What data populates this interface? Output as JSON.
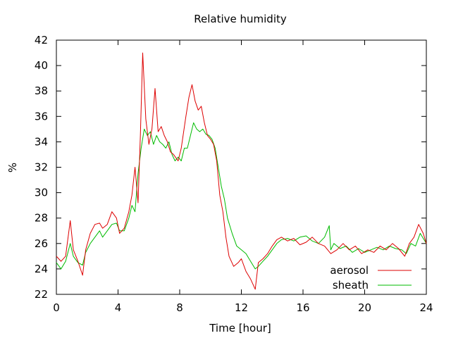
{
  "chart_data": {
    "type": "line",
    "title": "Relative humidity",
    "xlabel": "Time [hour]",
    "ylabel": "%",
    "xlim": [
      0,
      24
    ],
    "ylim": [
      22,
      42
    ],
    "xticks": [
      0,
      4,
      8,
      12,
      16,
      20,
      24
    ],
    "yticks": [
      22,
      24,
      26,
      28,
      30,
      32,
      34,
      36,
      38,
      40,
      42
    ],
    "grid": false,
    "legend": "bottom-right",
    "series": [
      {
        "name": "aerosol",
        "color": "#dd0000",
        "x": [
          0,
          0.3,
          0.6,
          0.9,
          1.1,
          1.4,
          1.7,
          1.9,
          2.2,
          2.5,
          2.8,
          3.0,
          3.3,
          3.6,
          3.9,
          4.1,
          4.4,
          4.7,
          4.9,
          5.1,
          5.3,
          5.45,
          5.6,
          5.8,
          6.0,
          6.2,
          6.4,
          6.6,
          6.8,
          7.0,
          7.2,
          7.4,
          7.6,
          7.9,
          8.1,
          8.4,
          8.6,
          8.8,
          9.0,
          9.2,
          9.4,
          9.6,
          9.8,
          10.0,
          10.2,
          10.4,
          10.6,
          10.8,
          11.0,
          11.2,
          11.5,
          11.8,
          12.0,
          12.3,
          12.6,
          12.9,
          13.1,
          13.4,
          13.7,
          14.0,
          14.3,
          14.6,
          15.0,
          15.4,
          15.8,
          16.2,
          16.6,
          17.0,
          17.4,
          17.8,
          18.2,
          18.6,
          19.0,
          19.4,
          19.8,
          20.2,
          20.6,
          21.0,
          21.4,
          21.8,
          22.2,
          22.6,
          22.9,
          23.2,
          23.5,
          23.8,
          24.0
        ],
        "y": [
          25.0,
          24.6,
          25.0,
          27.8,
          25.5,
          24.6,
          23.5,
          25.5,
          26.8,
          27.5,
          27.6,
          27.2,
          27.5,
          28.5,
          28.0,
          26.8,
          27.2,
          28.5,
          29.8,
          32.0,
          29.2,
          34.5,
          41.0,
          35.8,
          33.8,
          35.0,
          38.2,
          34.8,
          35.2,
          34.5,
          34.0,
          33.2,
          33.0,
          32.5,
          33.5,
          36.0,
          37.5,
          38.5,
          37.2,
          36.5,
          36.8,
          35.5,
          34.5,
          34.2,
          33.8,
          32.5,
          29.8,
          28.5,
          26.5,
          25.0,
          24.2,
          24.5,
          24.8,
          23.8,
          23.2,
          22.4,
          24.5,
          24.8,
          25.2,
          25.8,
          26.3,
          26.5,
          26.2,
          26.4,
          25.9,
          26.1,
          26.5,
          26.0,
          25.8,
          25.2,
          25.5,
          26.0,
          25.5,
          25.8,
          25.2,
          25.5,
          25.3,
          25.8,
          25.5,
          26.0,
          25.6,
          25.0,
          26.0,
          26.5,
          27.5,
          26.8,
          26.0
        ]
      },
      {
        "name": "sheath",
        "color": "#00bb00",
        "x": [
          0,
          0.3,
          0.6,
          0.9,
          1.1,
          1.4,
          1.7,
          1.9,
          2.2,
          2.5,
          2.8,
          3.0,
          3.3,
          3.6,
          3.9,
          4.1,
          4.4,
          4.7,
          4.9,
          5.1,
          5.3,
          5.5,
          5.7,
          5.9,
          6.1,
          6.3,
          6.5,
          6.7,
          6.9,
          7.1,
          7.3,
          7.5,
          7.7,
          7.9,
          8.1,
          8.3,
          8.5,
          8.7,
          8.9,
          9.1,
          9.3,
          9.5,
          9.7,
          9.9,
          10.1,
          10.3,
          10.5,
          10.7,
          10.9,
          11.1,
          11.4,
          11.7,
          12.0,
          12.3,
          12.6,
          12.9,
          13.1,
          13.4,
          13.7,
          14.0,
          14.3,
          14.6,
          15.0,
          15.4,
          15.8,
          16.2,
          16.6,
          17.0,
          17.4,
          17.7,
          17.8,
          18.0,
          18.4,
          18.8,
          19.2,
          19.6,
          20.0,
          20.4,
          20.8,
          21.2,
          21.6,
          22.0,
          22.4,
          22.7,
          23.0,
          23.3,
          23.6,
          24.0
        ],
        "y": [
          24.5,
          24.0,
          24.6,
          26.0,
          25.0,
          24.5,
          24.3,
          25.3,
          26.0,
          26.5,
          27.0,
          26.5,
          27.0,
          27.5,
          27.6,
          27.0,
          27.0,
          28.0,
          29.0,
          28.5,
          31.5,
          33.5,
          35.0,
          34.5,
          34.8,
          33.8,
          34.5,
          34.0,
          33.8,
          33.5,
          34.0,
          33.0,
          32.5,
          32.8,
          32.5,
          33.5,
          33.5,
          34.5,
          35.5,
          35.0,
          34.8,
          35.0,
          34.6,
          34.5,
          34.2,
          33.5,
          32.0,
          30.5,
          29.5,
          28.0,
          26.8,
          25.8,
          25.5,
          25.2,
          24.6,
          24.0,
          24.2,
          24.6,
          25.0,
          25.5,
          26.0,
          26.3,
          26.4,
          26.2,
          26.5,
          26.6,
          26.2,
          26.0,
          26.5,
          27.4,
          25.5,
          26.0,
          25.6,
          25.8,
          25.3,
          25.6,
          25.3,
          25.5,
          25.7,
          25.5,
          25.8,
          25.6,
          25.5,
          25.2,
          26.0,
          25.8,
          26.8,
          26.0
        ]
      }
    ]
  }
}
